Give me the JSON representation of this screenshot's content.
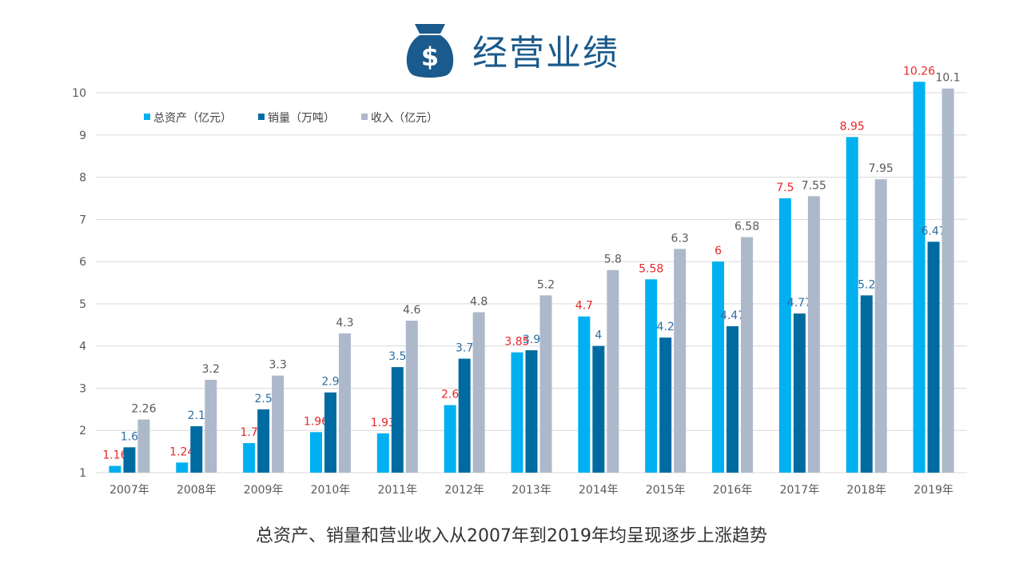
{
  "page": {
    "title": "经营业绩",
    "subtitle": "总资产、销量和营业收入从2007年到2019年均呈现逐步上涨趋势"
  },
  "chart_data": {
    "type": "bar",
    "categories": [
      "2007年",
      "2008年",
      "2009年",
      "2010年",
      "2011年",
      "2012年",
      "2013年",
      "2014年",
      "2015年",
      "2016年",
      "2017年",
      "2018年",
      "2019年"
    ],
    "series": [
      {
        "name": "总资产（亿元）",
        "color": "#00b0f0",
        "label_color": "#e8262a",
        "values": [
          1.16,
          1.24,
          1.7,
          1.96,
          1.93,
          2.6,
          3.85,
          4.7,
          5.58,
          6,
          7.5,
          8.95,
          10.26
        ]
      },
      {
        "name": "销量（万吨）",
        "color": "#006ba1",
        "label_color": "#2e6fa3",
        "values": [
          1.6,
          2.1,
          2.5,
          2.9,
          3.5,
          3.7,
          3.9,
          4,
          4.2,
          4.47,
          4.77,
          5.2,
          6.47
        ]
      },
      {
        "name": "收入（亿元）",
        "color": "#adb9ca",
        "label_color": "#595959",
        "values": [
          2.26,
          3.2,
          3.3,
          4.3,
          4.6,
          4.8,
          5.2,
          5.8,
          6.3,
          6.58,
          7.55,
          7.95,
          10.1
        ]
      }
    ],
    "ylim": [
      1,
      10
    ],
    "yticks": [
      "1",
      "2",
      "3",
      "4",
      "5",
      "6",
      "7",
      "8",
      "9",
      "10"
    ],
    "grid": true,
    "legend": "top-left",
    "title": "",
    "xlabel": "",
    "ylabel": ""
  },
  "icons": {
    "header_icon": "money-bag-icon"
  },
  "colors": {
    "title": "#1a5a8c",
    "grid": "#d9d9d9",
    "axis_text": "#595959"
  }
}
